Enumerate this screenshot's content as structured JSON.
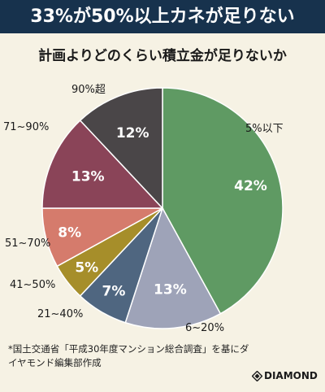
{
  "banner": {
    "title": "33%が50%以上カネが足りない"
  },
  "footnote": {
    "text": "*国土交通省「平成30年度マンション総合調査」を基にダイヤモンド編集部作成"
  },
  "brand": {
    "name": "DIAMOND"
  },
  "chart_data": {
    "type": "pie",
    "title": "計画よりどのくらい積立金が足りないか",
    "slices": [
      {
        "label": "5%以下",
        "value": 42,
        "value_label": "42%",
        "color": "#5f9a63"
      },
      {
        "label": "6~20%",
        "value": 13,
        "value_label": "13%",
        "color": "#9ea3b8"
      },
      {
        "label": "21~40%",
        "value": 7,
        "value_label": "7%",
        "color": "#4f6680"
      },
      {
        "label": "41~50%",
        "value": 5,
        "value_label": "5%",
        "color": "#a68e2a"
      },
      {
        "label": "51~70%",
        "value": 8,
        "value_label": "8%",
        "color": "#d57b6c"
      },
      {
        "label": "71~90%",
        "value": 13,
        "value_label": "13%",
        "color": "#8a4458"
      },
      {
        "label": "90%超",
        "value": 12,
        "value_label": "12%",
        "color": "#4a4648"
      }
    ],
    "start": "12 o'clock",
    "direction": "clockwise"
  }
}
